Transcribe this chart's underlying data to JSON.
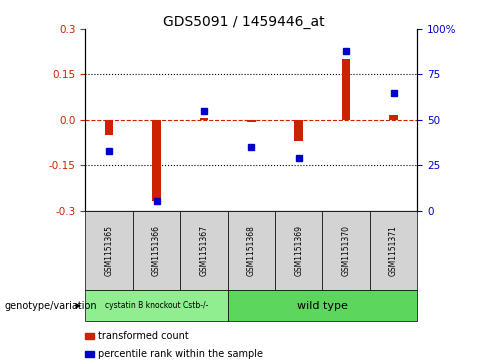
{
  "title": "GDS5091 / 1459446_at",
  "samples": [
    "GSM1151365",
    "GSM1151366",
    "GSM1151367",
    "GSM1151368",
    "GSM1151369",
    "GSM1151370",
    "GSM1151371"
  ],
  "transformed_counts": [
    -0.05,
    -0.27,
    0.005,
    -0.008,
    -0.07,
    0.2,
    0.015
  ],
  "percentile_ranks": [
    33,
    5,
    55,
    35,
    29,
    88,
    65
  ],
  "bar_color": "#CC2200",
  "dot_color": "#0000CC",
  "ylim_left": [
    -0.3,
    0.3
  ],
  "ylim_right": [
    0,
    100
  ],
  "yticks_left": [
    -0.3,
    -0.15,
    0.0,
    0.15,
    0.3
  ],
  "yticks_right": [
    0,
    25,
    50,
    75,
    100
  ],
  "group1_label": "cystatin B knockout Cstb-/-",
  "group2_label": "wild type",
  "group1_count": 3,
  "group2_count": 4,
  "group1_color": "#90EE90",
  "group2_color": "#5CD65C",
  "bar_bgcolor": "#D3D3D3",
  "legend_label1": "transformed count",
  "legend_label2": "percentile rank within the sample",
  "genotype_label": "genotype/variation"
}
